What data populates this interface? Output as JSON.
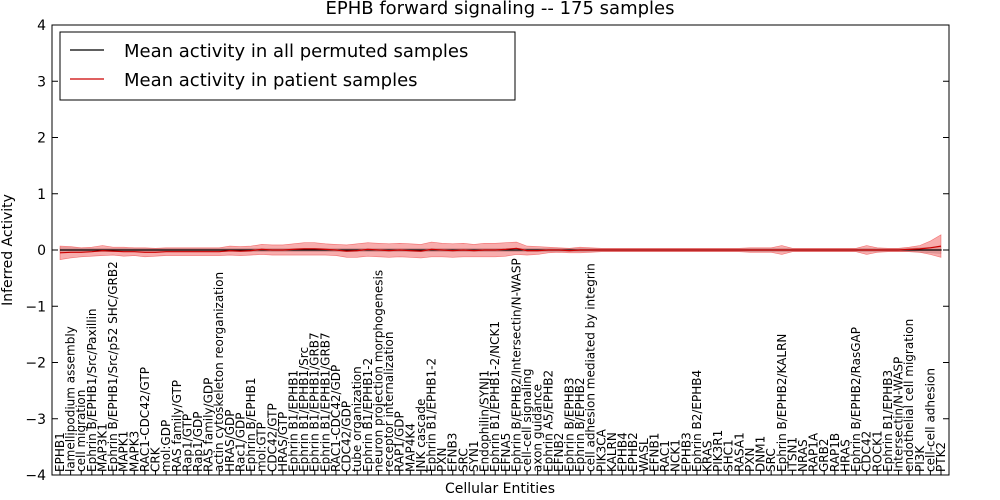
{
  "chart_data": {
    "type": "line",
    "title": "EPHB forward signaling -- 175 samples",
    "xlabel": "Cellular Entities",
    "ylabel": "Inferred Activity",
    "ylim": [
      -4,
      4
    ],
    "yticks": [
      "−4",
      "−3",
      "−2",
      "−1",
      "0",
      "1",
      "2",
      "3",
      "4"
    ],
    "grid": false,
    "legend_position": "top-left",
    "categories": [
      "EPHB1",
      "lamellipodium assembly",
      "cell migration",
      "Ephrin B/EPHB1/Src/Paxillin",
      "MAP3K1",
      "Ephrin B/EPHB1/Src/p52 SHC/GRB2",
      "MAPK1",
      "MAPK3",
      "RAC1-CDC42/GTP",
      "CRK",
      "mol:GDP",
      "RAS family/GTP",
      "Rap1/GTP",
      "Rap1/GDP",
      "RAS family/GDP",
      "actin cytoskeleton reorganization",
      "HRAS/GDP",
      "Rac1/GDP",
      "Ephrin B/EPHB1",
      "mol:GTP",
      "CDC42/GTP",
      "HRAS/GTP",
      "Ephrin B1/EPHB1",
      "Ephrin B1/EPHB1/Src",
      "Ephrin B1/EPHB1/GRB7",
      "Ephrin B1/EPHB1/GRB7",
      "RAC1-CDC42/GDP",
      "CDC42/GDP",
      "tube organization",
      "Ephrin B1/EPHB1-2",
      "neuron projection morphogenesis",
      "receptor internalization",
      "RAP1/GDP",
      "MAP4K4",
      "JNK cascade",
      "Ephrin B1/EPHB1-2",
      "PXN",
      "EFNB3",
      "SRC",
      "SYN1",
      "Endophilin/SYNJ1",
      "Ephrin B1/EPHB1-2/NCK1",
      "EFNA5",
      "Ephrin B/EPHB2/Intersectin/N-WASP",
      "cell-cell signaling",
      "axon guidance",
      "Ephrin A5/EPHB2",
      "EFNB2",
      "Ephrin B/EPHB3",
      "Ephrin B/EPHB2",
      "cell adhesion mediated by integrin",
      "PIK3CA",
      "KALRN",
      "EPHB4",
      "EPHB2",
      "WASL",
      "EFNB1",
      "RAC1",
      "NCK1",
      "EPHB3",
      "Ephrin B2/EPHB4",
      "KRAS",
      "PIK3R1",
      "SHC1",
      "RASA1",
      "PXN",
      "DNM1",
      "SRC",
      "Ephrin B/EPHB2/KALRN",
      "ITSN1",
      "NRAS",
      "RAP1A",
      "GRB2",
      "RAP1B",
      "HRAS",
      "Ephrin B/EPHB2/RasGAP",
      "CDC42",
      "ROCK1",
      "Ephrin B1/EPHB3",
      "Intersectin/N-WASP",
      "endothelial cell migration",
      "PI3K",
      "cell-cell adhesion",
      "PTK2"
    ],
    "series": [
      {
        "name": "Mean activity in all permuted samples",
        "color": "#000000",
        "values": [
          0,
          0,
          0,
          0,
          0,
          0,
          0,
          0,
          0,
          0,
          0,
          0,
          0,
          0,
          0,
          0,
          0,
          0,
          0,
          0,
          0,
          0,
          0,
          0,
          0,
          0,
          0,
          0,
          0,
          0,
          0,
          0,
          0,
          0,
          0,
          0,
          0,
          0,
          0,
          0,
          0,
          0,
          0,
          0,
          0,
          0,
          0,
          0,
          0,
          0,
          0,
          0,
          0,
          0,
          0,
          0,
          0,
          0,
          0,
          0,
          0,
          0,
          0,
          0,
          0,
          0,
          0,
          0,
          0,
          0,
          0,
          0,
          0,
          0,
          0,
          0,
          0,
          0,
          0,
          0,
          0,
          0,
          0,
          0
        ]
      },
      {
        "name": "Mean activity in patient samples",
        "color": "#cc0000",
        "values": [
          -0.05,
          -0.04,
          -0.04,
          -0.03,
          -0.01,
          -0.02,
          -0.03,
          -0.03,
          -0.04,
          -0.04,
          -0.03,
          -0.03,
          -0.03,
          -0.03,
          -0.03,
          -0.03,
          -0.01,
          -0.02,
          -0.01,
          0.01,
          0.0,
          0.0,
          0.01,
          0.02,
          0.02,
          0.01,
          0.0,
          -0.02,
          -0.01,
          0.01,
          0.0,
          -0.01,
          0.0,
          -0.01,
          -0.02,
          0.01,
          0.0,
          -0.01,
          0.0,
          -0.01,
          0.0,
          0.0,
          0.01,
          0.03,
          -0.01,
          -0.01,
          0.0,
          0.0,
          -0.01,
          0.0,
          0.0,
          0.0,
          0.0,
          0.0,
          0.0,
          0.0,
          0.0,
          0.0,
          0.0,
          0.0,
          0.0,
          0.0,
          0.0,
          0.0,
          0.0,
          0.0,
          0.0,
          0.0,
          0.0,
          0.0,
          0.0,
          0.0,
          0.0,
          0.0,
          0.0,
          0.0,
          0.0,
          0.0,
          0.0,
          0.0,
          0.01,
          0.02,
          0.04,
          0.07
        ]
      }
    ],
    "permuted_band_halfwidth": [
      0.04,
      0.04,
      0.03,
      0.03,
      0.03,
      0.03,
      0.03,
      0.03,
      0.03,
      0.03,
      0.03,
      0.03,
      0.03,
      0.03,
      0.03,
      0.03,
      0.03,
      0.03,
      0.03,
      0.03,
      0.03,
      0.03,
      0.03,
      0.03,
      0.03,
      0.03,
      0.03,
      0.03,
      0.03,
      0.03,
      0.03,
      0.03,
      0.03,
      0.03,
      0.03,
      0.03,
      0.03,
      0.03,
      0.03,
      0.03,
      0.03,
      0.03,
      0.03,
      0.03,
      0.03,
      0.03,
      0.03,
      0.03,
      0.03,
      0.03,
      0.03,
      0.03,
      0.03,
      0.03,
      0.03,
      0.03,
      0.03,
      0.03,
      0.03,
      0.03,
      0.03,
      0.03,
      0.03,
      0.03,
      0.03,
      0.03,
      0.03,
      0.03,
      0.03,
      0.03,
      0.03,
      0.03,
      0.03,
      0.03,
      0.03,
      0.03,
      0.03,
      0.03,
      0.03,
      0.03,
      0.03,
      0.04,
      0.05,
      0.06
    ],
    "patient_band_halfwidth": [
      0.12,
      0.1,
      0.08,
      0.08,
      0.09,
      0.07,
      0.08,
      0.07,
      0.08,
      0.07,
      0.07,
      0.07,
      0.07,
      0.07,
      0.07,
      0.07,
      0.08,
      0.08,
      0.08,
      0.09,
      0.09,
      0.09,
      0.1,
      0.11,
      0.11,
      0.1,
      0.1,
      0.11,
      0.12,
      0.12,
      0.12,
      0.12,
      0.12,
      0.12,
      0.12,
      0.13,
      0.12,
      0.12,
      0.12,
      0.11,
      0.12,
      0.12,
      0.12,
      0.11,
      0.08,
      0.07,
      0.05,
      0.04,
      0.04,
      0.05,
      0.04,
      0.03,
      0.03,
      0.03,
      0.03,
      0.03,
      0.03,
      0.03,
      0.03,
      0.03,
      0.03,
      0.03,
      0.03,
      0.03,
      0.03,
      0.04,
      0.04,
      0.04,
      0.08,
      0.03,
      0.03,
      0.03,
      0.03,
      0.03,
      0.03,
      0.03,
      0.08,
      0.04,
      0.03,
      0.03,
      0.04,
      0.06,
      0.12,
      0.2
    ]
  }
}
